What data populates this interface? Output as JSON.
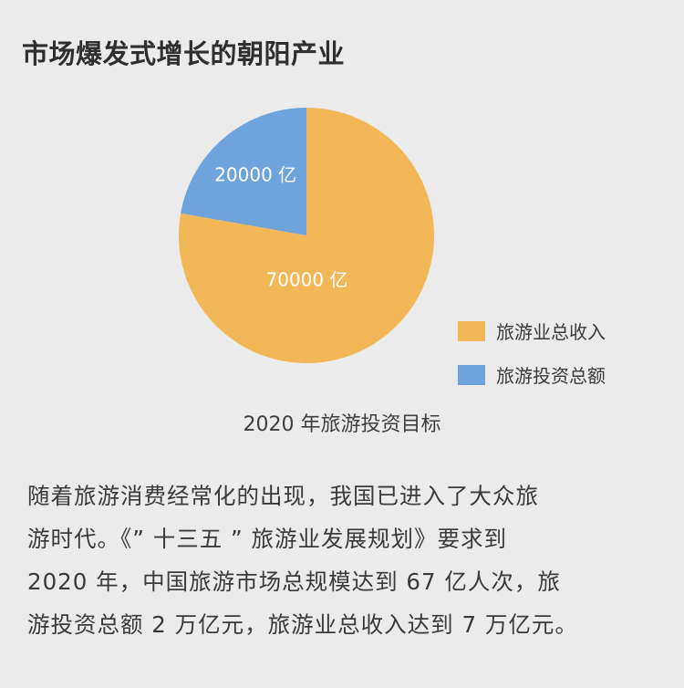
{
  "header": {
    "title": "市场爆发式增长的朝阳产业"
  },
  "chart_data": {
    "type": "pie",
    "title": "2020 年旅游投资目标",
    "slices": [
      {
        "name": "旅游业总收入",
        "value": 70000,
        "label": "70000 亿",
        "color": "#f2b857"
      },
      {
        "name": "旅游投资总额",
        "value": 20000,
        "label": "20000 亿",
        "color": "#6fa3dc"
      }
    ],
    "legend": "right"
  },
  "body": {
    "lines": [
      "随着旅游消费经常化的出现，我国已进入了大众旅",
      "游时代。《” 十三五 ” 旅游业发展规划》要求到",
      "2020 年，中国旅游市场总规模达到 67 亿人次，旅",
      "游投资总额 2 万亿元，旅游业总收入达到 7 万亿元。"
    ]
  }
}
